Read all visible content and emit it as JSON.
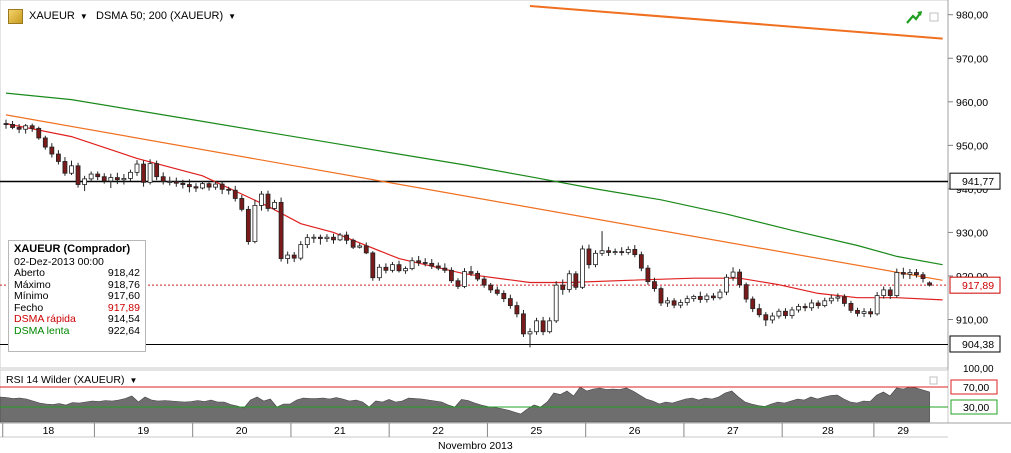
{
  "header": {
    "symbol": "XAUEUR",
    "indicator": "DSMA 50; 200 (XAUEUR)"
  },
  "info_box": {
    "title": "XAUEUR (Comprador)",
    "date": "02-Dez-2013 00:00",
    "rows": [
      {
        "label": "Aberto",
        "value": "918,42",
        "color": "#000000"
      },
      {
        "label": "Máximo",
        "value": "918,76",
        "color": "#000000"
      },
      {
        "label": "Mínimo",
        "value": "917,60",
        "color": "#000000"
      },
      {
        "label": "Fecho",
        "value": "917,89",
        "color": "#cc0000"
      },
      {
        "label": "DSMA rápida",
        "value": "914,54",
        "color": "#cc0000"
      },
      {
        "label": "DSMA lenta",
        "value": "922,64",
        "color": "#008800"
      }
    ]
  },
  "rsi_panel": {
    "title": "RSI 14 Wilder (XAUEUR)",
    "levels": [
      "70,00",
      "30,00"
    ]
  },
  "price_badges": {
    "resistance": "941,77",
    "last": "917,89",
    "support": "904,38"
  },
  "month_label": "Novembro 2013",
  "colors": {
    "fast_ma": "#e02020",
    "slow_ma": "#1a8a1a",
    "trendline": "#f07020",
    "candle_up": "#ffffff",
    "candle_down": "#7a1a1a",
    "rsi_fill": "#6e6e6e"
  },
  "chart_data": {
    "type": "candlestick",
    "ylim": [
      903,
      982
    ],
    "yticks": [
      "980,00",
      "970,00",
      "960,00",
      "950,00",
      "940,00",
      "930,00",
      "920,00",
      "910,00"
    ],
    "xticks": [
      "18",
      "19",
      "20",
      "21",
      "22",
      "25",
      "26",
      "27",
      "28",
      "29"
    ],
    "xlabel": "Novembro 2013",
    "horizontal_lines": [
      941.77,
      904.38
    ],
    "last_price": 917.89,
    "trendlines": [
      {
        "from": [
          0,
          957
        ],
        "to": [
          143,
          919
        ]
      },
      {
        "from": [
          80,
          982
        ],
        "to": [
          143,
          974.5
        ]
      }
    ],
    "fast_ma": [
      [
        0,
        955
      ],
      [
        10,
        952
      ],
      [
        20,
        947
      ],
      [
        30,
        943
      ],
      [
        40,
        936
      ],
      [
        45,
        932
      ],
      [
        50,
        930
      ],
      [
        60,
        924
      ],
      [
        70,
        920.5
      ],
      [
        80,
        918.5
      ],
      [
        86,
        918.5
      ],
      [
        95,
        919
      ],
      [
        105,
        919.5
      ],
      [
        112,
        919.5
      ],
      [
        118,
        918
      ],
      [
        124,
        916
      ],
      [
        130,
        915
      ],
      [
        136,
        915
      ],
      [
        143,
        914.5
      ]
    ],
    "slow_ma": [
      [
        0,
        962
      ],
      [
        10,
        960.5
      ],
      [
        20,
        958
      ],
      [
        30,
        955.5
      ],
      [
        40,
        953
      ],
      [
        50,
        950.5
      ],
      [
        60,
        948
      ],
      [
        70,
        945.5
      ],
      [
        80,
        942.8
      ],
      [
        90,
        940
      ],
      [
        100,
        937.5
      ],
      [
        110,
        934.2
      ],
      [
        120,
        930.5
      ],
      [
        130,
        927
      ],
      [
        136,
        924.5
      ],
      [
        143,
        922.6
      ]
    ],
    "ohlc": [
      {
        "o": 955.0,
        "h": 955.9,
        "l": 953.8,
        "c": 954.8
      },
      {
        "o": 954.8,
        "h": 955.6,
        "l": 953.7,
        "c": 954.1
      },
      {
        "o": 954.1,
        "h": 954.9,
        "l": 952.8,
        "c": 953.7
      },
      {
        "o": 953.7,
        "h": 954.9,
        "l": 952.7,
        "c": 954.5
      },
      {
        "o": 954.5,
        "h": 955.0,
        "l": 953.1,
        "c": 953.9
      },
      {
        "o": 953.9,
        "h": 954.3,
        "l": 951.3,
        "c": 951.7
      },
      {
        "o": 951.7,
        "h": 952.2,
        "l": 949.0,
        "c": 949.6
      },
      {
        "o": 949.6,
        "h": 950.5,
        "l": 947.2,
        "c": 948.0
      },
      {
        "o": 948.0,
        "h": 948.9,
        "l": 945.6,
        "c": 946.3
      },
      {
        "o": 946.3,
        "h": 947.3,
        "l": 943.0,
        "c": 943.6
      },
      {
        "o": 943.6,
        "h": 946.5,
        "l": 943.2,
        "c": 945.3
      },
      {
        "o": 945.3,
        "h": 946.0,
        "l": 940.3,
        "c": 941.0
      },
      {
        "o": 941.0,
        "h": 943.0,
        "l": 939.5,
        "c": 942.3
      },
      {
        "o": 942.3,
        "h": 944.0,
        "l": 941.7,
        "c": 943.4
      },
      {
        "o": 943.4,
        "h": 944.0,
        "l": 942.0,
        "c": 942.8
      },
      {
        "o": 942.8,
        "h": 943.6,
        "l": 941.2,
        "c": 941.8
      },
      {
        "o": 941.8,
        "h": 943.5,
        "l": 940.2,
        "c": 942.6
      },
      {
        "o": 942.6,
        "h": 943.7,
        "l": 941.1,
        "c": 942.1
      },
      {
        "o": 942.1,
        "h": 943.4,
        "l": 941.0,
        "c": 942.4
      },
      {
        "o": 942.4,
        "h": 944.4,
        "l": 941.8,
        "c": 943.8
      },
      {
        "o": 943.8,
        "h": 946.6,
        "l": 943.0,
        "c": 945.7
      },
      {
        "o": 945.7,
        "h": 946.5,
        "l": 940.5,
        "c": 941.5
      },
      {
        "o": 941.5,
        "h": 946.8,
        "l": 941.0,
        "c": 945.8
      },
      {
        "o": 945.8,
        "h": 946.5,
        "l": 942.0,
        "c": 942.8
      },
      {
        "o": 942.8,
        "h": 943.8,
        "l": 941.0,
        "c": 941.7
      },
      {
        "o": 941.7,
        "h": 942.8,
        "l": 940.8,
        "c": 941.7
      },
      {
        "o": 941.7,
        "h": 942.6,
        "l": 940.5,
        "c": 941.3
      },
      {
        "o": 941.3,
        "h": 942.1,
        "l": 940.1,
        "c": 941.0
      },
      {
        "o": 941.0,
        "h": 942.2,
        "l": 939.2,
        "c": 940.5
      },
      {
        "o": 940.5,
        "h": 941.3,
        "l": 939.3,
        "c": 940.2
      },
      {
        "o": 940.2,
        "h": 941.8,
        "l": 939.9,
        "c": 941.2
      },
      {
        "o": 941.2,
        "h": 941.8,
        "l": 939.6,
        "c": 940.4
      },
      {
        "o": 940.4,
        "h": 941.8,
        "l": 939.8,
        "c": 941.1
      },
      {
        "o": 941.1,
        "h": 941.7,
        "l": 938.8,
        "c": 939.9
      },
      {
        "o": 939.9,
        "h": 940.5,
        "l": 938.7,
        "c": 939.7
      },
      {
        "o": 939.7,
        "h": 940.7,
        "l": 937.1,
        "c": 937.8
      },
      {
        "o": 937.8,
        "h": 938.6,
        "l": 934.8,
        "c": 935.3
      },
      {
        "o": 935.3,
        "h": 936.1,
        "l": 927.2,
        "c": 927.9
      },
      {
        "o": 927.9,
        "h": 937.5,
        "l": 927.5,
        "c": 936.2
      },
      {
        "o": 936.2,
        "h": 939.5,
        "l": 935.0,
        "c": 938.8
      },
      {
        "o": 938.8,
        "h": 939.6,
        "l": 934.8,
        "c": 935.5
      },
      {
        "o": 935.5,
        "h": 937.5,
        "l": 935.1,
        "c": 936.9
      },
      {
        "o": 936.9,
        "h": 938.0,
        "l": 923.3,
        "c": 924.0
      },
      {
        "o": 924.0,
        "h": 925.6,
        "l": 922.8,
        "c": 924.8
      },
      {
        "o": 924.8,
        "h": 925.5,
        "l": 923.2,
        "c": 924.1
      },
      {
        "o": 924.1,
        "h": 928.0,
        "l": 923.6,
        "c": 927.2
      },
      {
        "o": 927.2,
        "h": 929.6,
        "l": 926.4,
        "c": 928.8
      },
      {
        "o": 928.8,
        "h": 929.6,
        "l": 927.6,
        "c": 928.9
      },
      {
        "o": 928.9,
        "h": 929.5,
        "l": 927.2,
        "c": 928.6
      },
      {
        "o": 928.6,
        "h": 929.6,
        "l": 927.8,
        "c": 928.9
      },
      {
        "o": 928.9,
        "h": 929.7,
        "l": 927.4,
        "c": 928.3
      },
      {
        "o": 928.3,
        "h": 929.9,
        "l": 928.0,
        "c": 929.4
      },
      {
        "o": 929.4,
        "h": 930.2,
        "l": 927.3,
        "c": 928.2
      },
      {
        "o": 928.2,
        "h": 928.6,
        "l": 926.2,
        "c": 926.6
      },
      {
        "o": 926.6,
        "h": 927.5,
        "l": 926.3,
        "c": 926.9
      },
      {
        "o": 926.9,
        "h": 927.7,
        "l": 925.0,
        "c": 925.3
      },
      {
        "o": 925.3,
        "h": 925.7,
        "l": 918.9,
        "c": 919.6
      },
      {
        "o": 919.6,
        "h": 922.7,
        "l": 918.9,
        "c": 922.0
      },
      {
        "o": 922.0,
        "h": 922.9,
        "l": 920.6,
        "c": 921.3
      },
      {
        "o": 921.3,
        "h": 923.2,
        "l": 920.8,
        "c": 922.6
      },
      {
        "o": 922.6,
        "h": 923.5,
        "l": 920.8,
        "c": 921.2
      },
      {
        "o": 921.2,
        "h": 922.2,
        "l": 920.5,
        "c": 921.7
      },
      {
        "o": 921.7,
        "h": 924.3,
        "l": 921.3,
        "c": 923.5
      },
      {
        "o": 923.5,
        "h": 924.6,
        "l": 922.3,
        "c": 923.1
      },
      {
        "o": 923.1,
        "h": 924.1,
        "l": 922.2,
        "c": 922.9
      },
      {
        "o": 922.9,
        "h": 923.9,
        "l": 921.6,
        "c": 922.3
      },
      {
        "o": 922.3,
        "h": 923.1,
        "l": 921.3,
        "c": 921.8
      },
      {
        "o": 921.8,
        "h": 922.9,
        "l": 920.7,
        "c": 921.3
      },
      {
        "o": 921.3,
        "h": 922.0,
        "l": 918.4,
        "c": 918.9
      },
      {
        "o": 918.9,
        "h": 919.5,
        "l": 917.0,
        "c": 917.6
      },
      {
        "o": 917.6,
        "h": 921.8,
        "l": 917.2,
        "c": 921.0
      },
      {
        "o": 921.0,
        "h": 922.3,
        "l": 920.0,
        "c": 920.6
      },
      {
        "o": 920.6,
        "h": 921.2,
        "l": 918.8,
        "c": 919.3
      },
      {
        "o": 919.3,
        "h": 919.9,
        "l": 917.3,
        "c": 917.9
      },
      {
        "o": 917.9,
        "h": 918.4,
        "l": 916.1,
        "c": 916.8
      },
      {
        "o": 916.8,
        "h": 917.6,
        "l": 915.5,
        "c": 916.0
      },
      {
        "o": 916.0,
        "h": 916.7,
        "l": 914.0,
        "c": 914.8
      },
      {
        "o": 914.8,
        "h": 915.7,
        "l": 912.5,
        "c": 913.2
      },
      {
        "o": 913.2,
        "h": 914.1,
        "l": 910.5,
        "c": 911.3
      },
      {
        "o": 911.3,
        "h": 912.2,
        "l": 906.0,
        "c": 906.7
      },
      {
        "o": 906.7,
        "h": 908.0,
        "l": 903.6,
        "c": 907.2
      },
      {
        "o": 907.2,
        "h": 910.4,
        "l": 906.5,
        "c": 909.7
      },
      {
        "o": 909.7,
        "h": 910.6,
        "l": 906.4,
        "c": 907.2
      },
      {
        "o": 907.2,
        "h": 910.5,
        "l": 906.8,
        "c": 909.7
      },
      {
        "o": 909.7,
        "h": 918.8,
        "l": 909.2,
        "c": 917.9
      },
      {
        "o": 917.9,
        "h": 919.2,
        "l": 915.7,
        "c": 916.9
      },
      {
        "o": 916.9,
        "h": 921.3,
        "l": 916.2,
        "c": 920.5
      },
      {
        "o": 920.5,
        "h": 921.1,
        "l": 916.8,
        "c": 917.4
      },
      {
        "o": 917.4,
        "h": 927.0,
        "l": 917.0,
        "c": 926.2
      },
      {
        "o": 926.2,
        "h": 927.2,
        "l": 921.7,
        "c": 922.6
      },
      {
        "o": 922.6,
        "h": 925.9,
        "l": 922.0,
        "c": 925.2
      },
      {
        "o": 925.2,
        "h": 930.3,
        "l": 924.6,
        "c": 925.8
      },
      {
        "o": 925.8,
        "h": 926.7,
        "l": 924.6,
        "c": 925.4
      },
      {
        "o": 925.4,
        "h": 926.3,
        "l": 924.8,
        "c": 925.6
      },
      {
        "o": 925.6,
        "h": 926.6,
        "l": 924.7,
        "c": 925.4
      },
      {
        "o": 925.4,
        "h": 926.8,
        "l": 924.9,
        "c": 926.1
      },
      {
        "o": 926.1,
        "h": 927.1,
        "l": 924.3,
        "c": 924.9
      },
      {
        "o": 924.9,
        "h": 925.6,
        "l": 921.1,
        "c": 921.8
      },
      {
        "o": 921.8,
        "h": 922.5,
        "l": 918.0,
        "c": 918.7
      },
      {
        "o": 918.7,
        "h": 919.6,
        "l": 916.4,
        "c": 917.1
      },
      {
        "o": 917.1,
        "h": 917.6,
        "l": 913.1,
        "c": 913.8
      },
      {
        "o": 913.8,
        "h": 915.1,
        "l": 912.9,
        "c": 914.3
      },
      {
        "o": 914.3,
        "h": 914.9,
        "l": 912.6,
        "c": 913.3
      },
      {
        "o": 913.3,
        "h": 914.6,
        "l": 912.6,
        "c": 913.9
      },
      {
        "o": 913.9,
        "h": 915.5,
        "l": 913.2,
        "c": 914.8
      },
      {
        "o": 914.8,
        "h": 915.7,
        "l": 914.1,
        "c": 915.3
      },
      {
        "o": 915.3,
        "h": 916.4,
        "l": 913.8,
        "c": 914.6
      },
      {
        "o": 914.6,
        "h": 916.0,
        "l": 913.9,
        "c": 915.4
      },
      {
        "o": 915.4,
        "h": 916.1,
        "l": 914.4,
        "c": 915.0
      },
      {
        "o": 915.0,
        "h": 917.0,
        "l": 914.6,
        "c": 916.3
      },
      {
        "o": 916.3,
        "h": 920.4,
        "l": 915.6,
        "c": 919.7
      },
      {
        "o": 919.7,
        "h": 922.0,
        "l": 918.9,
        "c": 920.9
      },
      {
        "o": 920.9,
        "h": 921.6,
        "l": 917.3,
        "c": 918.0
      },
      {
        "o": 918.0,
        "h": 918.5,
        "l": 913.9,
        "c": 914.7
      },
      {
        "o": 914.7,
        "h": 915.3,
        "l": 911.7,
        "c": 912.5
      },
      {
        "o": 912.5,
        "h": 913.6,
        "l": 910.5,
        "c": 911.1
      },
      {
        "o": 911.1,
        "h": 911.7,
        "l": 908.5,
        "c": 909.9
      },
      {
        "o": 909.9,
        "h": 911.6,
        "l": 909.1,
        "c": 910.8
      },
      {
        "o": 910.8,
        "h": 912.5,
        "l": 910.2,
        "c": 911.9
      },
      {
        "o": 911.9,
        "h": 912.6,
        "l": 910.2,
        "c": 910.9
      },
      {
        "o": 910.9,
        "h": 912.9,
        "l": 910.2,
        "c": 912.2
      },
      {
        "o": 912.2,
        "h": 913.6,
        "l": 911.6,
        "c": 913.0
      },
      {
        "o": 913.0,
        "h": 913.7,
        "l": 911.9,
        "c": 912.7
      },
      {
        "o": 912.7,
        "h": 914.6,
        "l": 912.0,
        "c": 913.8
      },
      {
        "o": 913.8,
        "h": 914.4,
        "l": 912.5,
        "c": 913.2
      },
      {
        "o": 913.2,
        "h": 915.0,
        "l": 912.8,
        "c": 914.3
      },
      {
        "o": 914.3,
        "h": 915.7,
        "l": 913.6,
        "c": 914.9
      },
      {
        "o": 914.9,
        "h": 916.0,
        "l": 914.1,
        "c": 915.2
      },
      {
        "o": 915.2,
        "h": 915.8,
        "l": 913.0,
        "c": 913.7
      },
      {
        "o": 913.7,
        "h": 914.3,
        "l": 911.5,
        "c": 912.1
      },
      {
        "o": 912.1,
        "h": 912.7,
        "l": 910.7,
        "c": 911.4
      },
      {
        "o": 911.4,
        "h": 912.6,
        "l": 910.6,
        "c": 911.8
      },
      {
        "o": 911.8,
        "h": 912.6,
        "l": 910.5,
        "c": 911.3
      },
      {
        "o": 911.3,
        "h": 916.3,
        "l": 910.9,
        "c": 915.5
      },
      {
        "o": 915.5,
        "h": 917.6,
        "l": 914.8,
        "c": 916.8
      },
      {
        "o": 916.8,
        "h": 917.5,
        "l": 914.7,
        "c": 915.5
      },
      {
        "o": 915.5,
        "h": 921.7,
        "l": 915.0,
        "c": 920.8
      },
      {
        "o": 920.8,
        "h": 921.9,
        "l": 919.4,
        "c": 920.4
      },
      {
        "o": 920.4,
        "h": 921.6,
        "l": 919.3,
        "c": 920.8
      },
      {
        "o": 920.8,
        "h": 921.6,
        "l": 919.6,
        "c": 920.3
      },
      {
        "o": 920.3,
        "h": 920.9,
        "l": 918.5,
        "c": 919.4
      },
      {
        "o": 918.42,
        "h": 918.76,
        "l": 917.6,
        "c": 917.89
      }
    ],
    "rsi": {
      "ylim": [
        0,
        100
      ],
      "levels": [
        70,
        30
      ],
      "values": [
        50,
        49,
        47,
        48,
        46,
        42,
        38,
        36,
        35,
        37,
        34,
        39,
        38,
        40,
        42,
        41,
        43,
        42,
        44,
        47,
        52,
        40,
        50,
        44,
        42,
        43,
        42,
        41,
        40,
        41,
        43,
        41,
        44,
        40,
        40,
        35,
        32,
        28,
        44,
        50,
        42,
        46,
        30,
        36,
        36,
        44,
        48,
        47,
        47,
        48,
        46,
        49,
        46,
        42,
        44,
        40,
        30,
        42,
        40,
        45,
        40,
        42,
        48,
        47,
        46,
        44,
        42,
        40,
        34,
        30,
        45,
        43,
        38,
        34,
        31,
        29,
        27,
        24,
        20,
        16,
        26,
        34,
        30,
        40,
        58,
        55,
        62,
        52,
        70,
        62,
        66,
        68,
        65,
        66,
        65,
        68,
        62,
        54,
        46,
        42,
        36,
        40,
        38,
        42,
        46,
        48,
        44,
        48,
        46,
        50,
        58,
        62,
        50,
        40,
        36,
        33,
        31,
        36,
        40,
        38,
        42,
        46,
        44,
        50,
        46,
        50,
        53,
        54,
        46,
        40,
        38,
        42,
        41,
        54,
        60,
        52,
        68,
        66,
        70,
        68,
        64,
        60
      ]
    }
  }
}
